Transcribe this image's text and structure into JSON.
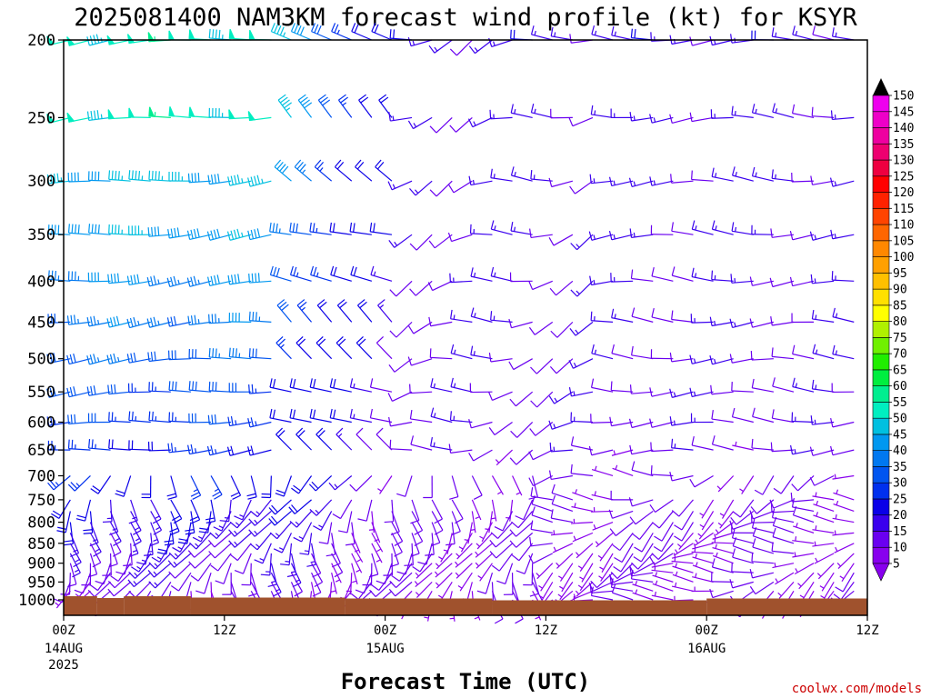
{
  "chart_data": {
    "type": "wind-barb-time-height",
    "title": "2025081400 NAM3KM forecast wind profile (kt) for KSYR",
    "xlabel": "Forecast Time (UTC)",
    "units": "kt",
    "y_axis": {
      "scale": "log-pressure (inverted)",
      "range": [
        1000,
        200
      ],
      "ticks": [
        200,
        250,
        300,
        350,
        400,
        450,
        500,
        550,
        600,
        650,
        700,
        750,
        800,
        850,
        900,
        950,
        1000
      ]
    },
    "x_axis": {
      "range_hours": [
        0,
        60
      ],
      "ticks": [
        {
          "hour": 0,
          "label": "00Z",
          "sub": "14AUG",
          "sub2": "2025"
        },
        {
          "hour": 12,
          "label": "12Z",
          "sub": "",
          "sub2": ""
        },
        {
          "hour": 24,
          "label": "00Z",
          "sub": "15AUG",
          "sub2": ""
        },
        {
          "hour": 36,
          "label": "12Z",
          "sub": "",
          "sub2": ""
        },
        {
          "hour": 48,
          "label": "00Z",
          "sub": "16AUG",
          "sub2": ""
        },
        {
          "hour": 60,
          "label": "12Z",
          "sub": "",
          "sub2": ""
        }
      ]
    },
    "colorbar": {
      "levels": [
        5,
        10,
        15,
        20,
        25,
        30,
        35,
        40,
        45,
        50,
        55,
        60,
        65,
        70,
        75,
        80,
        85,
        90,
        95,
        100,
        105,
        110,
        115,
        120,
        125,
        130,
        135,
        140,
        145,
        150
      ],
      "colors": [
        "#8800ee",
        "#6a00f0",
        "#3a00ee",
        "#0a00e8",
        "#0030ee",
        "#0055f0",
        "#0078f0",
        "#0098f0",
        "#00c0e0",
        "#00eec0",
        "#00ee90",
        "#00ee40",
        "#20ee00",
        "#70f000",
        "#b0f000",
        "#ffff00",
        "#ffe000",
        "#ffc000",
        "#ffa000",
        "#ff8800",
        "#ff6600",
        "#ff4400",
        "#ff2200",
        "#ff0000",
        "#ee0040",
        "#ee0070",
        "#ee00a0",
        "#ee00c8",
        "#ee00ee",
        "#ff00ff"
      ]
    },
    "terrain_color": "#a0522d",
    "profile_summary": [
      {
        "pressure": 200,
        "early_speed_kt": 50,
        "late_speed_kt": 15
      },
      {
        "pressure": 250,
        "early_speed_kt": 50,
        "late_speed_kt": 10
      },
      {
        "pressure": 300,
        "early_speed_kt": 40,
        "late_speed_kt": 15
      },
      {
        "pressure": 400,
        "early_speed_kt": 35,
        "late_speed_kt": 15
      },
      {
        "pressure": 500,
        "early_speed_kt": 30,
        "late_speed_kt": 15
      },
      {
        "pressure": 700,
        "early_speed_kt": 15,
        "late_speed_kt": 15
      },
      {
        "pressure": 850,
        "early_speed_kt": 10,
        "late_speed_kt": 10
      },
      {
        "pressure": 1000,
        "early_speed_kt": 5,
        "late_speed_kt": 5
      }
    ]
  },
  "credit": "coolwx.com/models"
}
